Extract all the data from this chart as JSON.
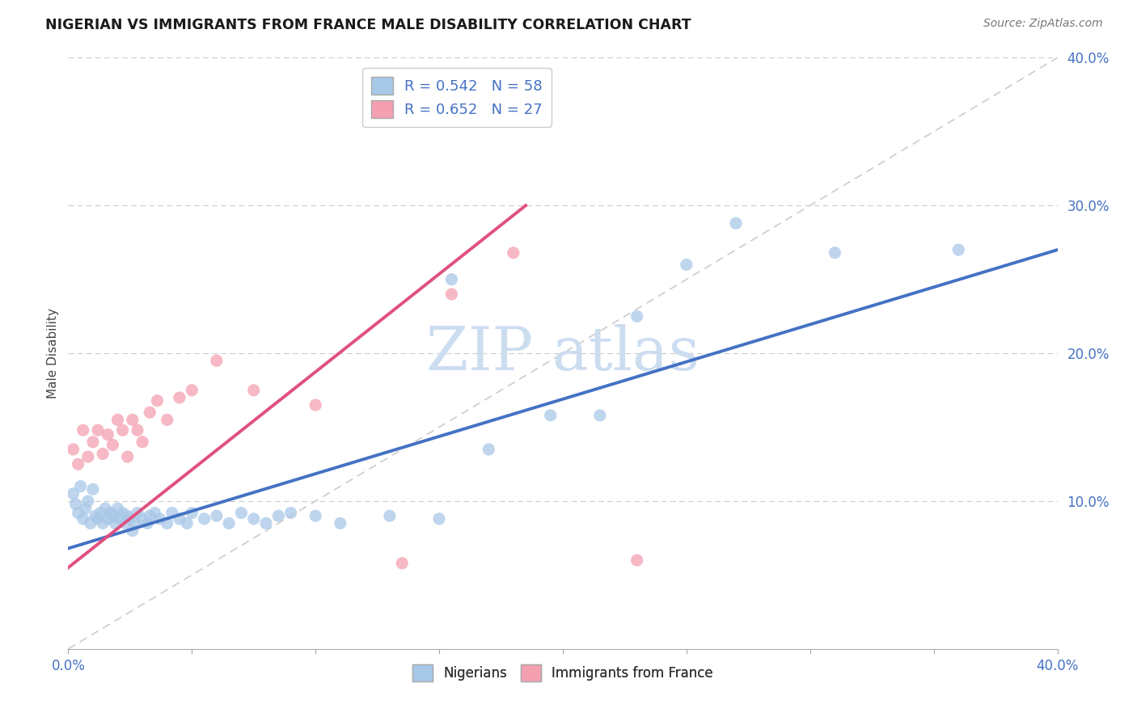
{
  "title": "NIGERIAN VS IMMIGRANTS FROM FRANCE MALE DISABILITY CORRELATION CHART",
  "source": "Source: ZipAtlas.com",
  "ylabel": "Male Disability",
  "xlim": [
    0.0,
    0.4
  ],
  "ylim": [
    0.0,
    0.4
  ],
  "nigeria_R": 0.542,
  "nigeria_N": 58,
  "france_R": 0.652,
  "france_N": 27,
  "nigeria_color": "#a8c8e8",
  "france_color": "#f4a0b0",
  "nigeria_line_color": "#4472c4",
  "france_line_color": "#e05080",
  "diagonal_color": "#cccccc",
  "legend_text_color": "#4472c4",
  "watermark_color": "#ccddf0",
  "nigeria_x": [
    0.002,
    0.003,
    0.004,
    0.005,
    0.006,
    0.007,
    0.008,
    0.009,
    0.01,
    0.011,
    0.012,
    0.013,
    0.014,
    0.015,
    0.016,
    0.017,
    0.018,
    0.019,
    0.02,
    0.021,
    0.022,
    0.023,
    0.024,
    0.025,
    0.026,
    0.027,
    0.028,
    0.03,
    0.032,
    0.033,
    0.035,
    0.037,
    0.04,
    0.042,
    0.045,
    0.048,
    0.05,
    0.055,
    0.06,
    0.065,
    0.07,
    0.075,
    0.08,
    0.085,
    0.09,
    0.1,
    0.11,
    0.13,
    0.15,
    0.17,
    0.195,
    0.215,
    0.25,
    0.27,
    0.31,
    0.36,
    0.155,
    0.23
  ],
  "nigeria_y": [
    0.105,
    0.098,
    0.092,
    0.11,
    0.088,
    0.095,
    0.1,
    0.085,
    0.108,
    0.09,
    0.088,
    0.092,
    0.085,
    0.095,
    0.088,
    0.092,
    0.09,
    0.085,
    0.095,
    0.088,
    0.092,
    0.085,
    0.09,
    0.088,
    0.08,
    0.085,
    0.092,
    0.088,
    0.085,
    0.09,
    0.092,
    0.088,
    0.085,
    0.092,
    0.088,
    0.085,
    0.092,
    0.088,
    0.09,
    0.085,
    0.092,
    0.088,
    0.085,
    0.09,
    0.092,
    0.09,
    0.085,
    0.09,
    0.088,
    0.135,
    0.158,
    0.158,
    0.26,
    0.288,
    0.268,
    0.27,
    0.25,
    0.225
  ],
  "france_x": [
    0.002,
    0.004,
    0.006,
    0.008,
    0.01,
    0.012,
    0.014,
    0.016,
    0.018,
    0.02,
    0.022,
    0.024,
    0.026,
    0.028,
    0.03,
    0.033,
    0.036,
    0.04,
    0.045,
    0.05,
    0.06,
    0.075,
    0.1,
    0.135,
    0.155,
    0.18,
    0.23
  ],
  "france_y": [
    0.135,
    0.125,
    0.148,
    0.13,
    0.14,
    0.148,
    0.132,
    0.145,
    0.138,
    0.155,
    0.148,
    0.13,
    0.155,
    0.148,
    0.14,
    0.16,
    0.168,
    0.155,
    0.17,
    0.175,
    0.195,
    0.175,
    0.165,
    0.058,
    0.24,
    0.268,
    0.06
  ],
  "nigeria_line_x": [
    0.0,
    0.4
  ],
  "nigeria_line_y": [
    0.068,
    0.27
  ],
  "france_line_x": [
    0.0,
    0.185
  ],
  "france_line_y": [
    0.055,
    0.3
  ]
}
